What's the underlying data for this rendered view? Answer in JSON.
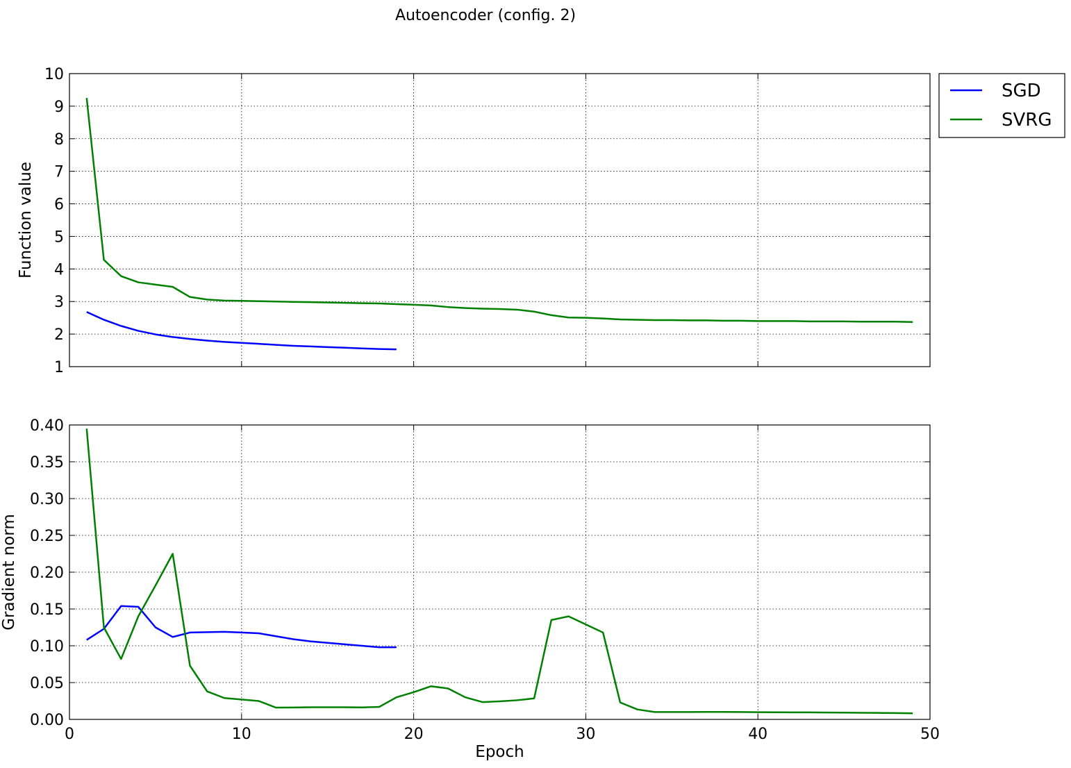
{
  "figure": {
    "title": "Autoencoder (config. 2)",
    "legend": {
      "placement": "outside-top-right",
      "entries": [
        {
          "label": "SGD",
          "color": "#0000ff"
        },
        {
          "label": "SVRG",
          "color": "#008000"
        }
      ]
    }
  },
  "chart_data": [
    {
      "type": "line",
      "title": "",
      "xlabel": "",
      "ylabel": "Function value",
      "xlim": [
        0,
        50
      ],
      "ylim": [
        1,
        10
      ],
      "xticks": [
        0,
        10,
        20,
        30,
        40,
        50
      ],
      "xtick_labels_visible": false,
      "yticks": [
        1,
        2,
        3,
        4,
        5,
        6,
        7,
        8,
        9,
        10
      ],
      "ytick_labels": [
        "1",
        "2",
        "3",
        "4",
        "5",
        "6",
        "7",
        "8",
        "9",
        "10"
      ],
      "grid": true,
      "series": [
        {
          "name": "SGD",
          "color": "#0000ff",
          "x": [
            1,
            2,
            3,
            4,
            5,
            6,
            7,
            8,
            9,
            10,
            11,
            12,
            13,
            14,
            15,
            16,
            17,
            18,
            19
          ],
          "y": [
            2.68,
            2.44,
            2.25,
            2.1,
            1.99,
            1.91,
            1.85,
            1.8,
            1.76,
            1.73,
            1.7,
            1.67,
            1.64,
            1.62,
            1.6,
            1.58,
            1.56,
            1.54,
            1.53
          ]
        },
        {
          "name": "SVRG",
          "color": "#008000",
          "x": [
            1,
            2,
            3,
            4,
            5,
            6,
            7,
            8,
            9,
            10,
            11,
            12,
            13,
            14,
            15,
            16,
            17,
            18,
            19,
            20,
            21,
            22,
            23,
            24,
            25,
            26,
            27,
            28,
            29,
            30,
            31,
            32,
            33,
            34,
            35,
            36,
            37,
            38,
            39,
            40,
            41,
            42,
            43,
            44,
            45,
            46,
            47,
            48,
            49
          ],
          "y": [
            9.25,
            4.28,
            3.78,
            3.59,
            3.52,
            3.45,
            3.14,
            3.06,
            3.03,
            3.02,
            3.01,
            3.0,
            2.99,
            2.98,
            2.97,
            2.96,
            2.95,
            2.94,
            2.92,
            2.9,
            2.88,
            2.83,
            2.8,
            2.78,
            2.77,
            2.75,
            2.69,
            2.58,
            2.51,
            2.5,
            2.48,
            2.45,
            2.44,
            2.43,
            2.43,
            2.42,
            2.42,
            2.41,
            2.41,
            2.4,
            2.4,
            2.4,
            2.39,
            2.39,
            2.39,
            2.38,
            2.38,
            2.38,
            2.37
          ]
        }
      ]
    },
    {
      "type": "line",
      "title": "",
      "xlabel": "Epoch",
      "ylabel": "Gradient norm",
      "xlim": [
        0,
        50
      ],
      "ylim": [
        0,
        0.4
      ],
      "xticks": [
        0,
        10,
        20,
        30,
        40,
        50
      ],
      "xtick_labels": [
        "0",
        "10",
        "20",
        "30",
        "40",
        "50"
      ],
      "yticks": [
        0,
        0.05,
        0.1,
        0.15,
        0.2,
        0.25,
        0.3,
        0.35,
        0.4
      ],
      "ytick_labels": [
        "0.00",
        "0.05",
        "0.10",
        "0.15",
        "0.20",
        "0.25",
        "0.30",
        "0.35",
        "0.40"
      ],
      "grid": true,
      "series": [
        {
          "name": "SGD",
          "color": "#0000ff",
          "x": [
            1,
            2,
            3,
            4,
            5,
            6,
            7,
            8,
            9,
            10,
            11,
            12,
            13,
            14,
            15,
            16,
            17,
            18,
            19
          ],
          "y": [
            0.108,
            0.123,
            0.154,
            0.153,
            0.125,
            0.112,
            0.118,
            0.1185,
            0.119,
            0.118,
            0.117,
            0.113,
            0.109,
            0.106,
            0.104,
            0.102,
            0.1,
            0.098,
            0.098
          ]
        },
        {
          "name": "SVRG",
          "color": "#008000",
          "x": [
            1,
            2,
            3,
            4,
            5,
            6,
            7,
            8,
            9,
            10,
            11,
            12,
            13,
            14,
            15,
            16,
            17,
            18,
            19,
            20,
            21,
            22,
            23,
            24,
            25,
            26,
            27,
            28,
            29,
            30,
            31,
            32,
            33,
            34,
            35,
            36,
            37,
            38,
            39,
            40,
            41,
            42,
            43,
            44,
            45,
            46,
            47,
            48,
            49
          ],
          "y": [
            0.395,
            0.125,
            0.082,
            0.14,
            0.182,
            0.225,
            0.073,
            0.038,
            0.029,
            0.027,
            0.025,
            0.016,
            0.0162,
            0.0165,
            0.0165,
            0.0165,
            0.0163,
            0.017,
            0.03,
            0.037,
            0.045,
            0.042,
            0.03,
            0.0235,
            0.0245,
            0.026,
            0.0285,
            0.135,
            0.14,
            0.129,
            0.118,
            0.023,
            0.0135,
            0.01,
            0.01,
            0.01,
            0.0102,
            0.0101,
            0.01,
            0.0098,
            0.0097,
            0.0096,
            0.0095,
            0.0093,
            0.0092,
            0.009,
            0.0088,
            0.0086,
            0.0083
          ]
        }
      ]
    }
  ]
}
